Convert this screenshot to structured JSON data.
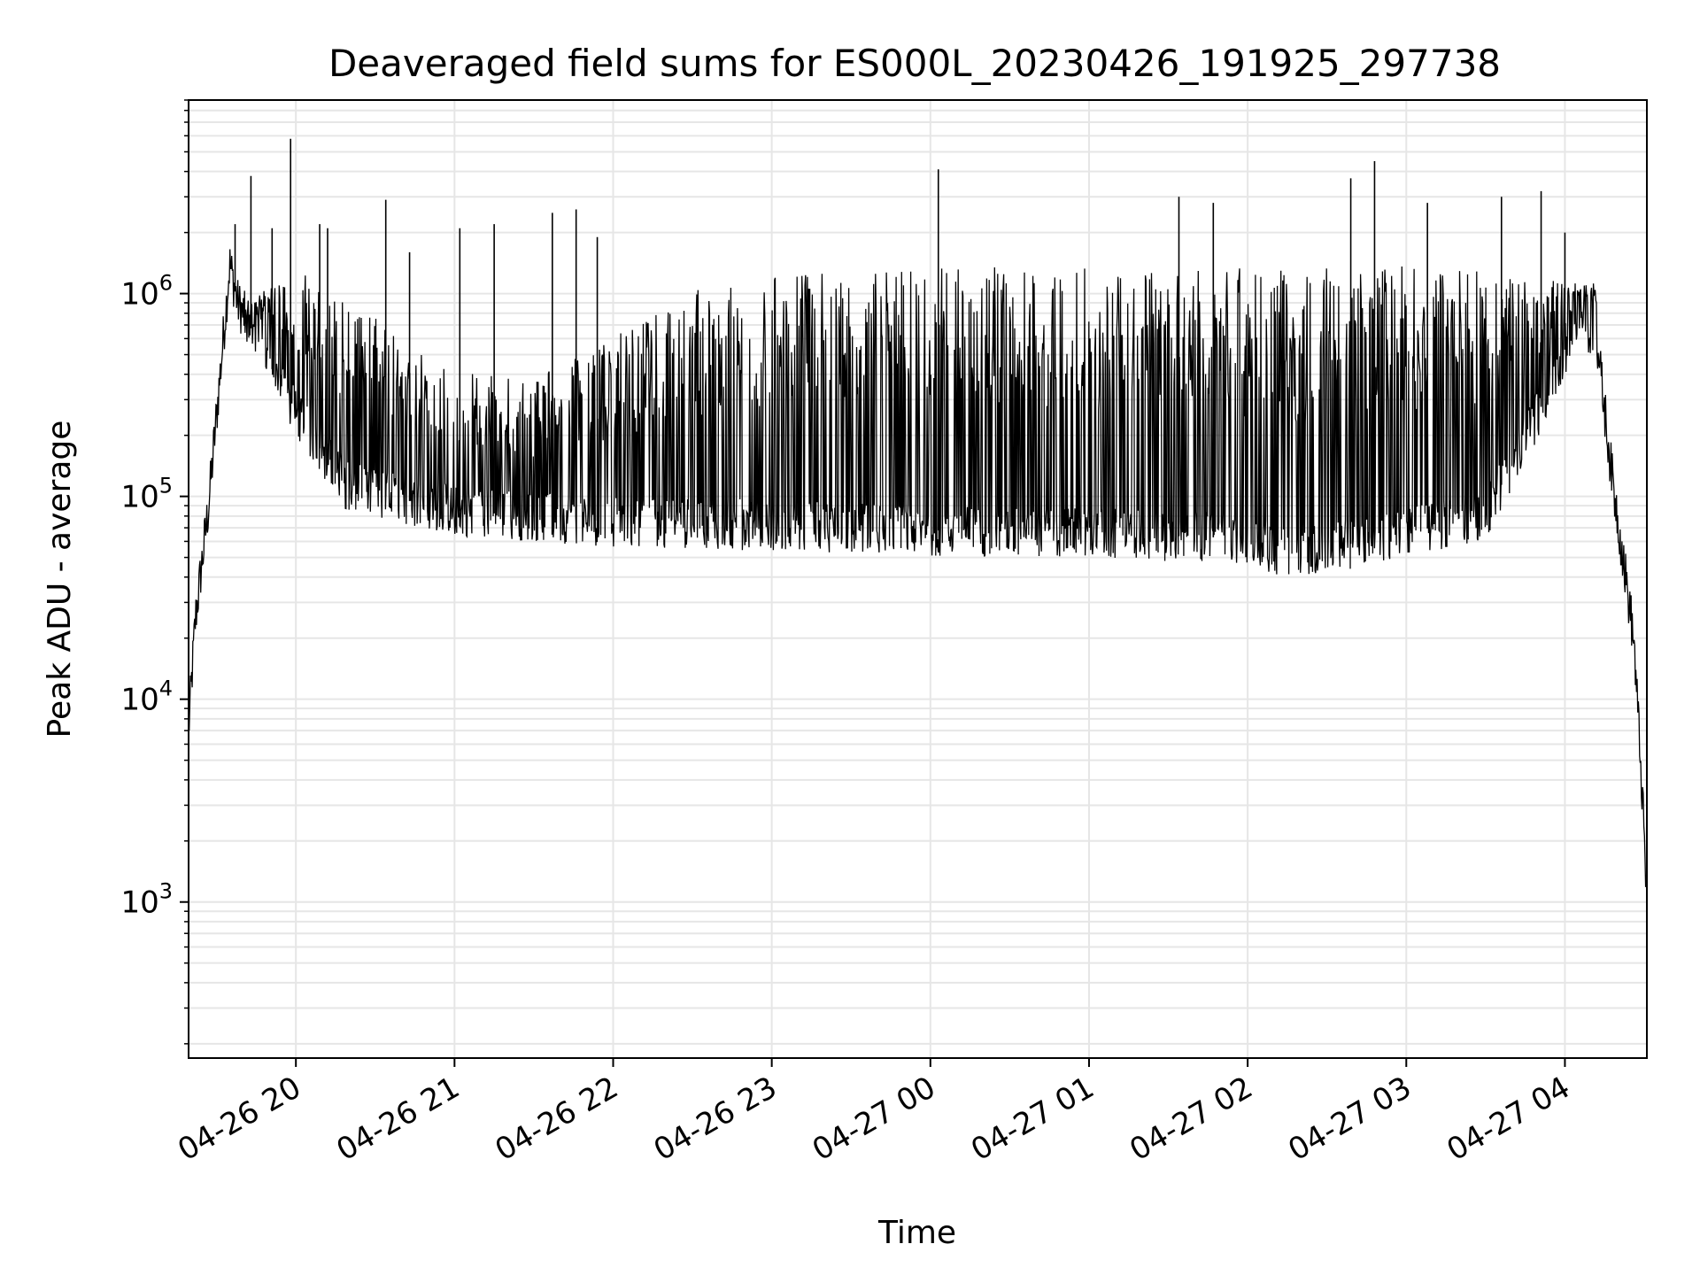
{
  "chart_data": {
    "type": "line",
    "title": "Deaveraged field sums for ES000L_20230426_191925_297738",
    "xlabel": "Time",
    "ylabel": "Peak ADU - average",
    "yscale": "log",
    "xlim": [
      "2023-04-26 19:19:25",
      "2023-04-27 04:31:00"
    ],
    "ylim": [
      170,
      9000000
    ],
    "grid": true,
    "line_color": "#000000",
    "grid_color": "#e6e6e6",
    "x_ticks": [
      {
        "time": "2023-04-26 20:00",
        "label": "04-26 20"
      },
      {
        "time": "2023-04-26 21:00",
        "label": "04-26 21"
      },
      {
        "time": "2023-04-26 22:00",
        "label": "04-26 22"
      },
      {
        "time": "2023-04-26 23:00",
        "label": "04-26 23"
      },
      {
        "time": "2023-04-27 00:00",
        "label": "04-27 00"
      },
      {
        "time": "2023-04-27 01:00",
        "label": "04-27 01"
      },
      {
        "time": "2023-04-27 02:00",
        "label": "04-27 02"
      },
      {
        "time": "2023-04-27 03:00",
        "label": "04-27 03"
      },
      {
        "time": "2023-04-27 04:00",
        "label": "04-27 04"
      }
    ],
    "y_ticks": [
      {
        "value": 1000,
        "base": "10",
        "exp": "3"
      },
      {
        "value": 10000,
        "base": "10",
        "exp": "4"
      },
      {
        "value": 100000,
        "base": "10",
        "exp": "5"
      },
      {
        "value": 1000000,
        "base": "10",
        "exp": "6"
      }
    ],
    "series": [
      {
        "baseline": [
          {
            "time": "2023-04-26 19:19:25",
            "value": 7000
          },
          {
            "time": "2023-04-26 19:22:00",
            "value": 25000
          },
          {
            "time": "2023-04-26 19:27:00",
            "value": 90000
          },
          {
            "time": "2023-04-26 19:32:00",
            "value": 500000
          },
          {
            "time": "2023-04-26 19:35:00",
            "value": 1400000
          },
          {
            "time": "2023-04-26 19:38:00",
            "value": 900000
          },
          {
            "time": "2023-04-26 19:50:00",
            "value": 450000
          },
          {
            "time": "2023-04-26 20:00:00",
            "value": 250000
          },
          {
            "time": "2023-04-26 20:20:00",
            "value": 110000
          },
          {
            "time": "2023-04-26 21:00:00",
            "value": 85000
          },
          {
            "time": "2023-04-26 22:00:00",
            "value": 75000
          },
          {
            "time": "2023-04-26 23:00:00",
            "value": 72000
          },
          {
            "time": "2023-04-27 00:00:00",
            "value": 68000
          },
          {
            "time": "2023-04-27 01:00:00",
            "value": 66000
          },
          {
            "time": "2023-04-27 02:00:00",
            "value": 62000
          },
          {
            "time": "2023-04-27 02:15:00",
            "value": 52000
          },
          {
            "time": "2023-04-27 02:45:00",
            "value": 60000
          },
          {
            "time": "2023-04-27 03:30:00",
            "value": 80000
          },
          {
            "time": "2023-04-27 03:55:00",
            "value": 350000
          },
          {
            "time": "2023-04-27 04:05:00",
            "value": 800000
          },
          {
            "time": "2023-04-27 04:12:00",
            "value": 600000
          },
          {
            "time": "2023-04-27 04:18:00",
            "value": 120000
          },
          {
            "time": "2023-04-27 04:22:00",
            "value": 50000
          },
          {
            "time": "2023-04-27 04:26:00",
            "value": 20000
          },
          {
            "time": "2023-04-27 04:29:00",
            "value": 4000
          },
          {
            "time": "2023-04-27 04:31:00",
            "value": 1000
          }
        ],
        "envelope": [
          {
            "time": "2023-04-26 19:40:00",
            "value": 900000
          },
          {
            "time": "2023-04-26 20:00:00",
            "value": 1200000
          },
          {
            "time": "2023-04-26 20:30:00",
            "value": 700000
          },
          {
            "time": "2023-04-26 21:00:00",
            "value": 400000
          },
          {
            "time": "2023-04-26 21:30:00",
            "value": 350000
          },
          {
            "time": "2023-04-26 22:00:00",
            "value": 550000
          },
          {
            "time": "2023-04-26 22:30:00",
            "value": 900000
          },
          {
            "time": "2023-04-26 23:00:00",
            "value": 1100000
          },
          {
            "time": "2023-04-27 00:00:00",
            "value": 1200000
          },
          {
            "time": "2023-04-27 01:00:00",
            "value": 1150000
          },
          {
            "time": "2023-04-27 02:00:00",
            "value": 1150000
          },
          {
            "time": "2023-04-27 03:00:00",
            "value": 1200000
          },
          {
            "time": "2023-04-27 04:00:00",
            "value": 1100000
          },
          {
            "time": "2023-04-27 04:12:00",
            "value": 1100000
          }
        ],
        "peaks": [
          {
            "time": "2023-04-26 19:37:00",
            "value": 2200000
          },
          {
            "time": "2023-04-26 19:43:00",
            "value": 3800000
          },
          {
            "time": "2023-04-26 19:51:00",
            "value": 2100000
          },
          {
            "time": "2023-04-26 19:58:00",
            "value": 5800000
          },
          {
            "time": "2023-04-26 20:09:00",
            "value": 2200000
          },
          {
            "time": "2023-04-26 20:12:00",
            "value": 2100000
          },
          {
            "time": "2023-04-26 20:34:00",
            "value": 2900000
          },
          {
            "time": "2023-04-26 20:43:00",
            "value": 1600000
          },
          {
            "time": "2023-04-26 21:02:00",
            "value": 2100000
          },
          {
            "time": "2023-04-26 21:15:00",
            "value": 2200000
          },
          {
            "time": "2023-04-26 21:37:00",
            "value": 2500000
          },
          {
            "time": "2023-04-26 21:46:00",
            "value": 2600000
          },
          {
            "time": "2023-04-26 21:54:00",
            "value": 1900000
          },
          {
            "time": "2023-04-27 00:03:00",
            "value": 4100000
          },
          {
            "time": "2023-04-27 01:34:00",
            "value": 3000000
          },
          {
            "time": "2023-04-27 01:47:00",
            "value": 2800000
          },
          {
            "time": "2023-04-27 02:39:00",
            "value": 3700000
          },
          {
            "time": "2023-04-27 02:48:00",
            "value": 4500000
          },
          {
            "time": "2023-04-27 03:08:00",
            "value": 2800000
          },
          {
            "time": "2023-04-27 03:36:00",
            "value": 3000000
          },
          {
            "time": "2023-04-27 03:51:00",
            "value": 3200000
          },
          {
            "time": "2023-04-27 04:00:00",
            "value": 2000000
          }
        ]
      }
    ]
  }
}
